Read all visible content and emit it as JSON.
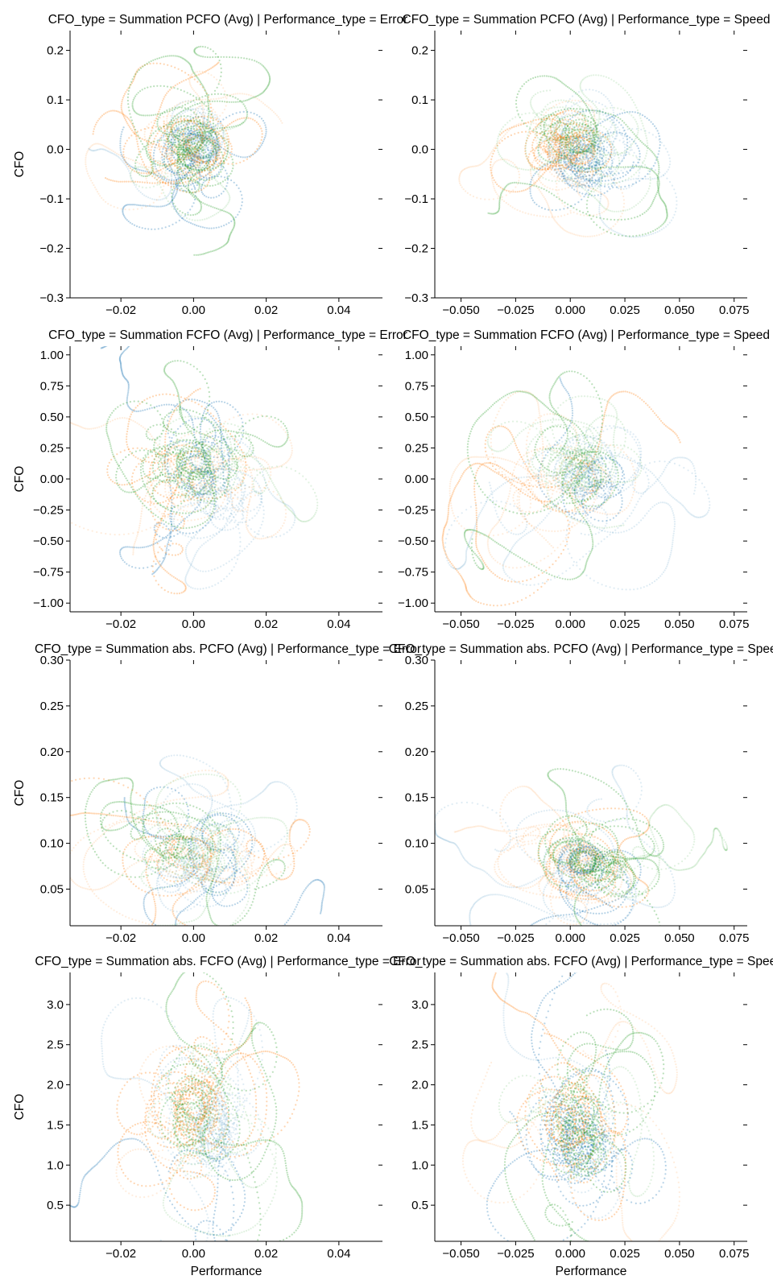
{
  "chart_data": [
    {
      "type": "scatter",
      "title": "CFO_type = Summation PCFO (Avg) | Performance_type = Error",
      "xlabel": "",
      "ylabel": "CFO",
      "xlim": [
        -0.034,
        0.052
      ],
      "ylim": [
        -0.3,
        0.24
      ],
      "xticks": [
        -0.02,
        0.0,
        0.02,
        0.04
      ],
      "xtick_labels": [
        "−0.02",
        "0.00",
        "0.02",
        "0.04"
      ],
      "yticks": [
        -0.3,
        -0.2,
        -0.1,
        0.0,
        0.1,
        0.2
      ],
      "ytick_labels": [
        "−0.3",
        "−0.2",
        "−0.1",
        "0.0",
        "0.1",
        "0.2"
      ],
      "series": [
        {
          "color": "#1f77b4",
          "center": [
            0.002,
            0.0
          ],
          "spread": [
            0.009,
            0.06
          ],
          "trajectories": 9,
          "seed": 11
        },
        {
          "color": "#ff7f0e",
          "center": [
            -0.001,
            0.0
          ],
          "spread": [
            0.01,
            0.065
          ],
          "trajectories": 8,
          "seed": 12
        },
        {
          "color": "#2ca02c",
          "center": [
            0.001,
            0.005
          ],
          "spread": [
            0.009,
            0.06
          ],
          "trajectories": 9,
          "seed": 13
        }
      ]
    },
    {
      "type": "scatter",
      "title": "CFO_type = Summation PCFO (Avg) | Performance_type = Speed",
      "xlabel": "",
      "ylabel": "",
      "xlim": [
        -0.062,
        0.081
      ],
      "ylim": [
        -0.3,
        0.24
      ],
      "xticks": [
        -0.05,
        -0.025,
        0.0,
        0.025,
        0.05,
        0.075
      ],
      "xtick_labels": [
        "−0.050",
        "−0.025",
        "0.000",
        "0.025",
        "0.050",
        "0.075"
      ],
      "yticks": [
        -0.3,
        -0.2,
        -0.1,
        0.0,
        0.1,
        0.2
      ],
      "ytick_labels": [
        "−0.3",
        "−0.2",
        "−0.1",
        "0.0",
        "0.1",
        "0.2"
      ],
      "series": [
        {
          "color": "#1f77b4",
          "center": [
            0.005,
            0.0
          ],
          "spread": [
            0.018,
            0.07
          ],
          "trajectories": 9,
          "seed": 21
        },
        {
          "color": "#ff7f0e",
          "center": [
            -0.003,
            0.0
          ],
          "spread": [
            0.016,
            0.06
          ],
          "trajectories": 8,
          "seed": 22
        },
        {
          "color": "#2ca02c",
          "center": [
            0.003,
            0.0
          ],
          "spread": [
            0.016,
            0.06
          ],
          "trajectories": 9,
          "seed": 23
        }
      ]
    },
    {
      "type": "scatter",
      "title": "CFO_type = Summation FCFO (Avg) | Performance_type = Error",
      "xlabel": "",
      "ylabel": "CFO",
      "xlim": [
        -0.034,
        0.052
      ],
      "ylim": [
        -1.07,
        1.07
      ],
      "xticks": [
        -0.02,
        0.0,
        0.02,
        0.04
      ],
      "xtick_labels": [
        "−0.02",
        "0.00",
        "0.02",
        "0.04"
      ],
      "yticks": [
        -1.0,
        -0.75,
        -0.5,
        -0.25,
        0.0,
        0.25,
        0.5,
        0.75,
        1.0
      ],
      "ytick_labels": [
        "−1.00",
        "−0.75",
        "−0.50",
        "−0.25",
        "0.00",
        "0.25",
        "0.50",
        "0.75",
        "1.00"
      ],
      "series": [
        {
          "color": "#1f77b4",
          "center": [
            0.002,
            0.0
          ],
          "spread": [
            0.01,
            0.3
          ],
          "trajectories": 9,
          "seed": 31
        },
        {
          "color": "#ff7f0e",
          "center": [
            -0.003,
            0.05
          ],
          "spread": [
            0.011,
            0.3
          ],
          "trajectories": 8,
          "seed": 32
        },
        {
          "color": "#2ca02c",
          "center": [
            0.0,
            0.05
          ],
          "spread": [
            0.01,
            0.28
          ],
          "trajectories": 9,
          "seed": 33
        }
      ]
    },
    {
      "type": "scatter",
      "title": "CFO_type = Summation FCFO (Avg) | Performance_type = Speed",
      "xlabel": "",
      "ylabel": "",
      "xlim": [
        -0.062,
        0.081
      ],
      "ylim": [
        -1.07,
        1.07
      ],
      "xticks": [
        -0.05,
        -0.025,
        0.0,
        0.025,
        0.05,
        0.075
      ],
      "xtick_labels": [
        "−0.050",
        "−0.025",
        "0.000",
        "0.025",
        "0.050",
        "0.075"
      ],
      "yticks": [
        -1.0,
        -0.75,
        -0.5,
        -0.25,
        0.0,
        0.25,
        0.5,
        0.75,
        1.0
      ],
      "ytick_labels": [
        "−1.00",
        "−0.75",
        "−0.50",
        "−0.25",
        "0.00",
        "0.25",
        "0.50",
        "0.75",
        "1.00"
      ],
      "series": [
        {
          "color": "#1f77b4",
          "center": [
            0.003,
            0.0
          ],
          "spread": [
            0.018,
            0.32
          ],
          "trajectories": 9,
          "seed": 41
        },
        {
          "color": "#ff7f0e",
          "center": [
            -0.002,
            0.0
          ],
          "spread": [
            0.017,
            0.3
          ],
          "trajectories": 8,
          "seed": 42
        },
        {
          "color": "#2ca02c",
          "center": [
            0.002,
            0.05
          ],
          "spread": [
            0.016,
            0.28
          ],
          "trajectories": 9,
          "seed": 43
        }
      ]
    },
    {
      "type": "scatter",
      "title": "CFO_type = Summation abs. PCFO (Avg) | Performance_type = Error",
      "xlabel": "",
      "ylabel": "CFO",
      "xlim": [
        -0.034,
        0.052
      ],
      "ylim": [
        0.01,
        0.3
      ],
      "xticks": [
        -0.02,
        0.0,
        0.02,
        0.04
      ],
      "xtick_labels": [
        "−0.02",
        "0.00",
        "0.02",
        "0.04"
      ],
      "yticks": [
        0.05,
        0.1,
        0.15,
        0.2,
        0.25,
        0.3
      ],
      "ytick_labels": [
        "0.05",
        "0.10",
        "0.15",
        "0.20",
        "0.25",
        "0.30"
      ],
      "series": [
        {
          "color": "#1f77b4",
          "center": [
            0.002,
            0.085
          ],
          "spread": [
            0.01,
            0.035
          ],
          "trajectories": 9,
          "seed": 51
        },
        {
          "color": "#ff7f0e",
          "center": [
            -0.002,
            0.08
          ],
          "spread": [
            0.011,
            0.035
          ],
          "trajectories": 8,
          "seed": 52
        },
        {
          "color": "#2ca02c",
          "center": [
            0.0,
            0.09
          ],
          "spread": [
            0.01,
            0.035
          ],
          "trajectories": 9,
          "seed": 53
        }
      ]
    },
    {
      "type": "scatter",
      "title": "CFO_type = Summation abs. PCFO (Avg) | Performance_type = Speed",
      "xlabel": "",
      "ylabel": "",
      "xlim": [
        -0.062,
        0.081
      ],
      "ylim": [
        0.01,
        0.3
      ],
      "xticks": [
        -0.05,
        -0.025,
        0.0,
        0.025,
        0.05,
        0.075
      ],
      "xtick_labels": [
        "−0.050",
        "−0.025",
        "0.000",
        "0.025",
        "0.050",
        "0.075"
      ],
      "yticks": [
        0.05,
        0.1,
        0.15,
        0.2,
        0.25,
        0.3
      ],
      "ytick_labels": [
        "0.05",
        "0.10",
        "0.15",
        "0.20",
        "0.25",
        "0.30"
      ],
      "series": [
        {
          "color": "#1f77b4",
          "center": [
            0.005,
            0.08
          ],
          "spread": [
            0.017,
            0.035
          ],
          "trajectories": 9,
          "seed": 61
        },
        {
          "color": "#ff7f0e",
          "center": [
            -0.002,
            0.075
          ],
          "spread": [
            0.016,
            0.033
          ],
          "trajectories": 8,
          "seed": 62
        },
        {
          "color": "#2ca02c",
          "center": [
            0.002,
            0.08
          ],
          "spread": [
            0.016,
            0.033
          ],
          "trajectories": 9,
          "seed": 63
        }
      ]
    },
    {
      "type": "scatter",
      "title": "CFO_type = Summation abs. FCFO (Avg) | Performance_type = Error",
      "xlabel": "Performance",
      "ylabel": "CFO",
      "xlim": [
        -0.034,
        0.052
      ],
      "ylim": [
        0.05,
        3.4
      ],
      "xticks": [
        -0.02,
        0.0,
        0.02,
        0.04
      ],
      "xtick_labels": [
        "−0.02",
        "0.00",
        "0.02",
        "0.04"
      ],
      "yticks": [
        0.5,
        1.0,
        1.5,
        2.0,
        2.5,
        3.0
      ],
      "ytick_labels": [
        "0.5",
        "1.0",
        "1.5",
        "2.0",
        "2.5",
        "3.0"
      ],
      "series": [
        {
          "color": "#1f77b4",
          "center": [
            0.003,
            1.4
          ],
          "spread": [
            0.01,
            0.7
          ],
          "trajectories": 9,
          "seed": 71
        },
        {
          "color": "#ff7f0e",
          "center": [
            -0.003,
            1.6
          ],
          "spread": [
            0.011,
            0.6
          ],
          "trajectories": 8,
          "seed": 72
        },
        {
          "color": "#2ca02c",
          "center": [
            0.0,
            1.5
          ],
          "spread": [
            0.01,
            0.55
          ],
          "trajectories": 9,
          "seed": 73
        }
      ]
    },
    {
      "type": "scatter",
      "title": "CFO_type = Summation abs. FCFO (Avg) | Performance_type = Speed",
      "xlabel": "Performance",
      "ylabel": "",
      "xlim": [
        -0.062,
        0.081
      ],
      "ylim": [
        0.05,
        3.4
      ],
      "xticks": [
        -0.05,
        -0.025,
        0.0,
        0.025,
        0.05,
        0.075
      ],
      "xtick_labels": [
        "−0.050",
        "−0.025",
        "0.000",
        "0.025",
        "0.050",
        "0.075"
      ],
      "yticks": [
        0.5,
        1.0,
        1.5,
        2.0,
        2.5,
        3.0
      ],
      "ytick_labels": [
        "0.5",
        "1.0",
        "1.5",
        "2.0",
        "2.5",
        "3.0"
      ],
      "series": [
        {
          "color": "#1f77b4",
          "center": [
            0.004,
            1.3
          ],
          "spread": [
            0.018,
            0.7
          ],
          "trajectories": 9,
          "seed": 81
        },
        {
          "color": "#ff7f0e",
          "center": [
            -0.003,
            1.5
          ],
          "spread": [
            0.016,
            0.6
          ],
          "trajectories": 8,
          "seed": 82
        },
        {
          "color": "#2ca02c",
          "center": [
            0.002,
            1.5
          ],
          "spread": [
            0.016,
            0.55
          ],
          "trajectories": 9,
          "seed": 83
        }
      ]
    }
  ]
}
